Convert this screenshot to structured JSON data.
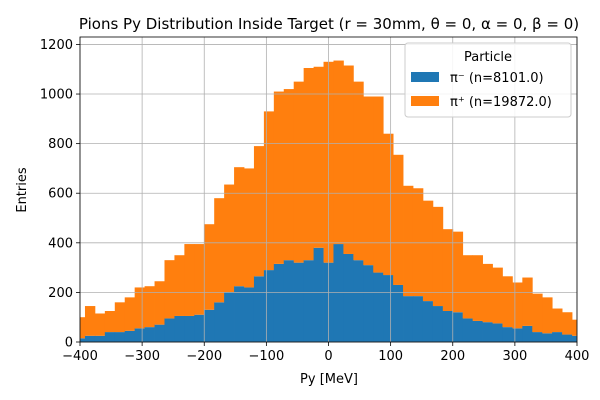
{
  "chart_data": {
    "type": "bar",
    "subtype": "stacked-histogram",
    "title": "Pions Py Distribution Inside Target (r = 30mm, θ = 0, α = 0, β = 0)",
    "xlabel": "Py [MeV]",
    "ylabel": "Entries",
    "xlim": [
      -400,
      400
    ],
    "ylim": [
      0,
      1230
    ],
    "xticks": [
      -400,
      -300,
      -200,
      -100,
      0,
      100,
      200,
      300,
      400
    ],
    "yticks": [
      0,
      200,
      400,
      600,
      800,
      1000,
      1200
    ],
    "grid": true,
    "legend": {
      "title": "Particle",
      "placement": "top-right"
    },
    "bin_width": 16,
    "bin_edges_start": -408,
    "series": [
      {
        "name": "π⁻ (n=8101.0)",
        "color": "#1f77b4",
        "values": [
          15,
          25,
          25,
          40,
          40,
          45,
          55,
          60,
          70,
          95,
          105,
          105,
          110,
          130,
          160,
          200,
          225,
          220,
          265,
          290,
          315,
          330,
          320,
          330,
          380,
          320,
          395,
          355,
          330,
          310,
          280,
          270,
          230,
          185,
          185,
          165,
          145,
          125,
          120,
          95,
          85,
          80,
          75,
          60,
          55,
          65,
          40,
          35,
          40,
          30,
          25
        ]
      },
      {
        "name": "π⁺ (n=19872.0)",
        "color": "#ff7f0e",
        "values": [
          85,
          120,
          90,
          85,
          120,
          135,
          165,
          165,
          175,
          235,
          245,
          290,
          285,
          345,
          420,
          435,
          480,
          480,
          525,
          640,
          695,
          690,
          730,
          775,
          730,
          810,
          740,
          760,
          720,
          680,
          710,
          570,
          525,
          445,
          435,
          405,
          400,
          330,
          325,
          255,
          265,
          235,
          225,
          205,
          185,
          195,
          155,
          145,
          95,
          90,
          65
        ]
      }
    ]
  }
}
